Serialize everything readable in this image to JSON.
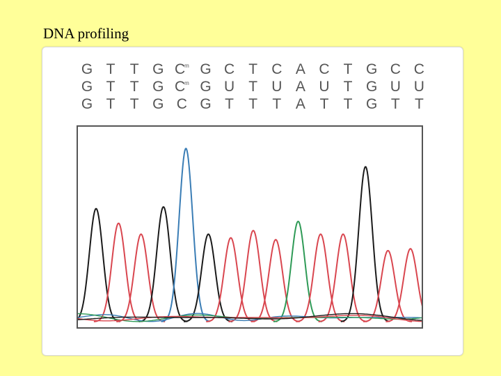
{
  "slide": {
    "title": "DNA profiling"
  },
  "sequence_rows": [
    [
      "G",
      "T",
      "T",
      "G",
      "C",
      "G",
      "C",
      "T",
      "C",
      "A",
      "C",
      "T",
      "G",
      "C",
      "C"
    ],
    [
      "G",
      "T",
      "T",
      "G",
      "C",
      "G",
      "U",
      "T",
      "U",
      "A",
      "U",
      "T",
      "G",
      "U",
      "U"
    ],
    [
      "G",
      "T",
      "T",
      "G",
      "C",
      "G",
      "T",
      "T",
      "T",
      "A",
      "T",
      "T",
      "G",
      "T",
      "T"
    ]
  ],
  "methylation_mark": "m",
  "methylated_positions": {
    "row0": [
      4
    ],
    "row1": [
      4
    ]
  },
  "trace_colors": {
    "black": "#1a1a1a",
    "red": "#d9464f",
    "blue": "#3a7db5",
    "green": "#2e9a56"
  },
  "chromatogram": {
    "peaks": [
      {
        "base": "G",
        "color": "black",
        "height": 0.62
      },
      {
        "base": "T",
        "color": "red",
        "height": 0.54
      },
      {
        "base": "T",
        "color": "red",
        "height": 0.48
      },
      {
        "base": "G",
        "color": "black",
        "height": 0.63
      },
      {
        "base": "C",
        "color": "blue",
        "height": 0.95
      },
      {
        "base": "G",
        "color": "black",
        "height": 0.48
      },
      {
        "base": "T",
        "color": "red",
        "height": 0.46
      },
      {
        "base": "T",
        "color": "red",
        "height": 0.5
      },
      {
        "base": "T",
        "color": "red",
        "height": 0.45
      },
      {
        "base": "A",
        "color": "green",
        "height": 0.55
      },
      {
        "base": "T",
        "color": "red",
        "height": 0.48
      },
      {
        "base": "T",
        "color": "red",
        "height": 0.48
      },
      {
        "base": "G",
        "color": "black",
        "height": 0.85
      },
      {
        "base": "T",
        "color": "red",
        "height": 0.39
      },
      {
        "base": "T",
        "color": "red",
        "height": 0.4
      }
    ]
  }
}
